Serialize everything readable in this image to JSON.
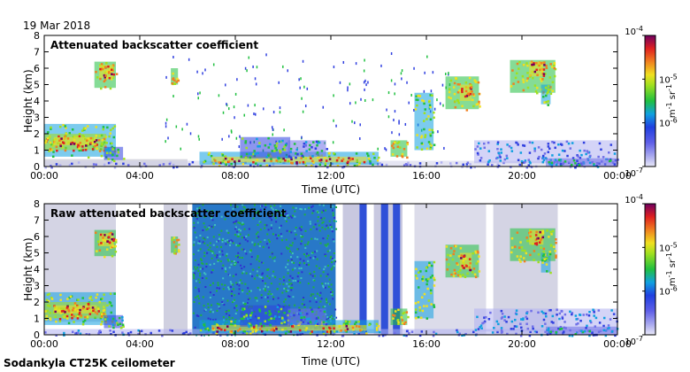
{
  "date_label": "19 Mar 2018",
  "footer_label": "Sodankyla CT25K ceilometer",
  "chart_data": [
    {
      "type": "heatmap",
      "title": "Attenuated backscatter coefficient",
      "xlabel": "Time (UTC)",
      "ylabel": "Height (km)",
      "x_ticks": [
        "00:00",
        "04:00",
        "08:00",
        "12:00",
        "16:00",
        "20:00",
        "00:00"
      ],
      "y_ticks": [
        "0",
        "1",
        "2",
        "3",
        "4",
        "5",
        "6",
        "7",
        "8"
      ],
      "xlim_hours": [
        0,
        24
      ],
      "ylim_km": [
        0,
        8
      ],
      "colorbar": {
        "scale": "log",
        "min_label": "10-7",
        "max_label": "10-4",
        "tick_exponents": [
          -7,
          -6,
          -5,
          -4
        ],
        "unit_label": "m-1 sr-1"
      }
    },
    {
      "type": "heatmap",
      "title": "Raw attenuated backscatter coefficient",
      "xlabel": "Time (UTC)",
      "ylabel": "Height (km)",
      "x_ticks": [
        "00:00",
        "04:00",
        "08:00",
        "12:00",
        "16:00",
        "20:00",
        "00:00"
      ],
      "y_ticks": [
        "0",
        "1",
        "2",
        "3",
        "4",
        "5",
        "6",
        "7",
        "8"
      ],
      "xlim_hours": [
        0,
        24
      ],
      "ylim_km": [
        0,
        8
      ],
      "colorbar": {
        "scale": "log",
        "min_label": "10-7",
        "max_label": "10-4",
        "tick_exponents": [
          -7,
          -6,
          -5,
          -4
        ],
        "unit_label": "m-1 sr-1"
      }
    }
  ],
  "colors": {
    "low": "#3030e0",
    "mid": "#20c020",
    "high": "#e02020",
    "top": "#7a0060",
    "noise_gray": "#c8c8d8"
  }
}
